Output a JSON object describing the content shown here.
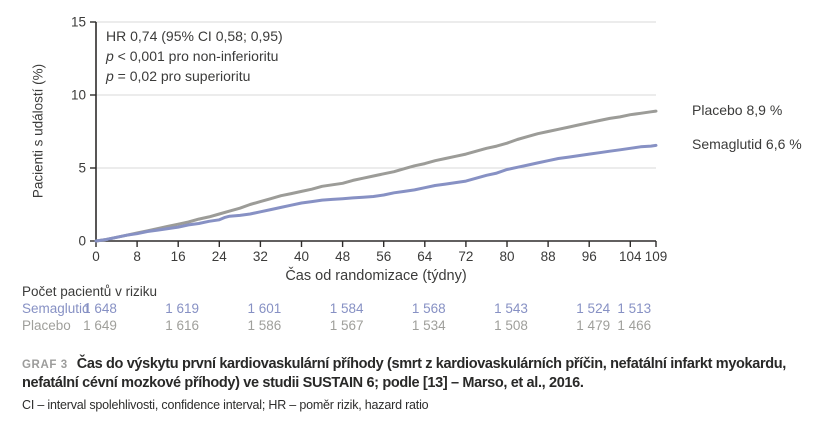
{
  "theme": {
    "background": "#ffffff",
    "axis_color": "#2e2c2b",
    "grid_color": "#d8d8d8",
    "text_color": "#3b3b3a",
    "placebo_color": "#9c9c98",
    "semaglutid_color": "#8791c4"
  },
  "chart_data": {
    "type": "line",
    "title": "",
    "xlabel": "Čas od randomizace (týdny)",
    "ylabel": "Pacienti s událostí (%)",
    "xlim": [
      0,
      109
    ],
    "ylim": [
      0,
      15
    ],
    "x_ticks": [
      0,
      8,
      16,
      24,
      32,
      40,
      48,
      56,
      64,
      72,
      80,
      88,
      96,
      104,
      109
    ],
    "y_ticks": [
      0,
      5,
      10,
      15
    ],
    "grid": "horizontal gridlines at 5, 10, 15",
    "legend_position": "right end-of-curve labels",
    "annotations": [
      {
        "pre": "",
        "text": "HR 0,74 (95% CI 0,58; 0,95)"
      },
      {
        "pre": "p",
        "text": " < 0,001 pro non-inferioritu"
      },
      {
        "pre": "p",
        "text": " = 0,02 pro superioritu"
      }
    ],
    "series": [
      {
        "name": "Placebo",
        "label": "Placebo 8,9 %",
        "color": "#9c9c98",
        "final_value_pct": 8.9,
        "points": [
          [
            0,
            0
          ],
          [
            2,
            0.1
          ],
          [
            4,
            0.25
          ],
          [
            6,
            0.4
          ],
          [
            8,
            0.55
          ],
          [
            10,
            0.7
          ],
          [
            12,
            0.85
          ],
          [
            14,
            1.0
          ],
          [
            16,
            1.15
          ],
          [
            18,
            1.3
          ],
          [
            20,
            1.5
          ],
          [
            22,
            1.65
          ],
          [
            24,
            1.85
          ],
          [
            26,
            2.05
          ],
          [
            28,
            2.25
          ],
          [
            30,
            2.5
          ],
          [
            32,
            2.7
          ],
          [
            34,
            2.9
          ],
          [
            36,
            3.1
          ],
          [
            38,
            3.25
          ],
          [
            40,
            3.4
          ],
          [
            42,
            3.55
          ],
          [
            44,
            3.75
          ],
          [
            46,
            3.85
          ],
          [
            48,
            3.95
          ],
          [
            50,
            4.15
          ],
          [
            52,
            4.3
          ],
          [
            54,
            4.45
          ],
          [
            56,
            4.6
          ],
          [
            58,
            4.75
          ],
          [
            60,
            4.95
          ],
          [
            62,
            5.15
          ],
          [
            64,
            5.3
          ],
          [
            66,
            5.5
          ],
          [
            68,
            5.65
          ],
          [
            70,
            5.8
          ],
          [
            72,
            5.95
          ],
          [
            74,
            6.15
          ],
          [
            76,
            6.35
          ],
          [
            78,
            6.5
          ],
          [
            80,
            6.7
          ],
          [
            82,
            6.95
          ],
          [
            84,
            7.15
          ],
          [
            86,
            7.35
          ],
          [
            88,
            7.5
          ],
          [
            90,
            7.65
          ],
          [
            92,
            7.8
          ],
          [
            94,
            7.95
          ],
          [
            96,
            8.1
          ],
          [
            98,
            8.25
          ],
          [
            100,
            8.4
          ],
          [
            102,
            8.5
          ],
          [
            104,
            8.65
          ],
          [
            106,
            8.75
          ],
          [
            108,
            8.85
          ],
          [
            109,
            8.9
          ]
        ]
      },
      {
        "name": "Semaglutid",
        "label": "Semaglutid 6,6 %",
        "color": "#8791c4",
        "final_value_pct": 6.6,
        "points": [
          [
            0,
            0
          ],
          [
            2,
            0.1
          ],
          [
            4,
            0.25
          ],
          [
            6,
            0.4
          ],
          [
            8,
            0.5
          ],
          [
            10,
            0.65
          ],
          [
            12,
            0.75
          ],
          [
            14,
            0.85
          ],
          [
            16,
            0.95
          ],
          [
            18,
            1.1
          ],
          [
            20,
            1.2
          ],
          [
            22,
            1.35
          ],
          [
            24,
            1.45
          ],
          [
            25,
            1.6
          ],
          [
            26,
            1.7
          ],
          [
            28,
            1.75
          ],
          [
            30,
            1.85
          ],
          [
            32,
            2.0
          ],
          [
            34,
            2.15
          ],
          [
            36,
            2.3
          ],
          [
            38,
            2.45
          ],
          [
            40,
            2.6
          ],
          [
            42,
            2.7
          ],
          [
            44,
            2.8
          ],
          [
            46,
            2.85
          ],
          [
            48,
            2.9
          ],
          [
            50,
            2.95
          ],
          [
            52,
            3.0
          ],
          [
            54,
            3.05
          ],
          [
            56,
            3.15
          ],
          [
            58,
            3.3
          ],
          [
            60,
            3.4
          ],
          [
            62,
            3.5
          ],
          [
            64,
            3.65
          ],
          [
            66,
            3.8
          ],
          [
            68,
            3.9
          ],
          [
            70,
            4.0
          ],
          [
            72,
            4.1
          ],
          [
            74,
            4.3
          ],
          [
            76,
            4.5
          ],
          [
            78,
            4.65
          ],
          [
            80,
            4.9
          ],
          [
            82,
            5.05
          ],
          [
            84,
            5.2
          ],
          [
            86,
            5.35
          ],
          [
            88,
            5.5
          ],
          [
            90,
            5.65
          ],
          [
            92,
            5.75
          ],
          [
            94,
            5.85
          ],
          [
            96,
            5.95
          ],
          [
            98,
            6.05
          ],
          [
            100,
            6.15
          ],
          [
            102,
            6.25
          ],
          [
            104,
            6.35
          ],
          [
            106,
            6.45
          ],
          [
            108,
            6.5
          ],
          [
            109,
            6.55
          ]
        ]
      }
    ]
  },
  "risk_table": {
    "title": "Počet pacientů v riziku",
    "weeks": [
      0,
      16,
      32,
      48,
      64,
      80,
      96,
      104
    ],
    "rows": [
      {
        "name": "Semaglutid",
        "color": "#8791c4",
        "values": [
          "1 648",
          "1 619",
          "1 601",
          "1 584",
          "1 568",
          "1 543",
          "1 524",
          "1 513"
        ]
      },
      {
        "name": "Placebo",
        "color": "#9f9f9b",
        "values": [
          "1 649",
          "1 616",
          "1 586",
          "1 567",
          "1 534",
          "1 508",
          "1 479",
          "1 466"
        ]
      }
    ]
  },
  "caption": {
    "tag": "GRAF 3",
    "text": "Čas do výskytu první kardiovaskulární příhody (smrt z kardiovaskulárních příčin, nefatální infarkt myokardu, nefatální cévní mozkové příhody) ve studii SUSTAIN 6; podle [13] – Marso, et al., 2016.",
    "footnote": "CI – interval spolehlivosti, confidence interval; HR – poměr rizik, hazard ratio"
  }
}
